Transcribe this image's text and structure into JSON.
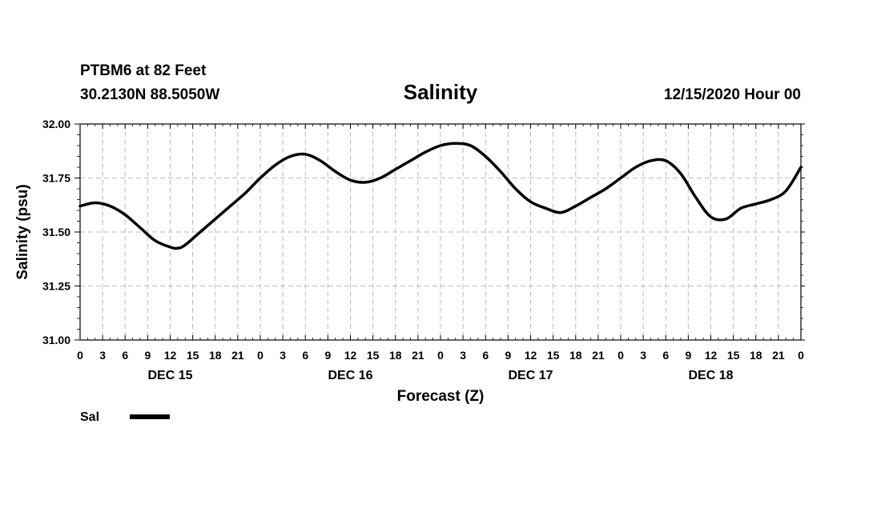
{
  "header": {
    "station_line": "PTBM6 at 82 Feet",
    "coords_line": "30.2130N 88.5050W",
    "date_line": "12/15/2020 Hour 00"
  },
  "legend": {
    "label": "Sal"
  },
  "chart_data": {
    "type": "line",
    "title": "Salinity",
    "xlabel": "Forecast (Z)",
    "ylabel": "Salinity (psu)",
    "ylim": [
      31.0,
      32.0
    ],
    "xlim": [
      0,
      96
    ],
    "yticks": [
      31.0,
      31.25,
      31.5,
      31.75,
      32.0
    ],
    "ytick_labels": [
      "31.00",
      "31.25",
      "31.50",
      "31.75",
      "32.00"
    ],
    "xticks": [
      0,
      3,
      6,
      9,
      12,
      15,
      18,
      21,
      24,
      27,
      30,
      33,
      36,
      39,
      42,
      45,
      48,
      51,
      54,
      57,
      60,
      63,
      66,
      69,
      72,
      75,
      78,
      81,
      84,
      87,
      90,
      93,
      96
    ],
    "xtick_labels": [
      "0",
      "3",
      "6",
      "9",
      "12",
      "15",
      "18",
      "21",
      "0",
      "3",
      "6",
      "9",
      "12",
      "15",
      "18",
      "21",
      "0",
      "3",
      "6",
      "9",
      "12",
      "15",
      "18",
      "21",
      "0",
      "3",
      "6",
      "9",
      "12",
      "15",
      "18",
      "21",
      "0"
    ],
    "day_labels": [
      {
        "label": "DEC 15",
        "hour": 12
      },
      {
        "label": "DEC 16",
        "hour": 36
      },
      {
        "label": "DEC 17",
        "hour": 60
      },
      {
        "label": "DEC 18",
        "hour": 84
      }
    ],
    "grid": true,
    "legend_position": "bottom-left",
    "series": [
      {
        "name": "Sal",
        "color": "#000000",
        "x": [
          0,
          2,
          4,
          6,
          8,
          10,
          12,
          13,
          14,
          16,
          18,
          20,
          22,
          24,
          26,
          28,
          30,
          32,
          34,
          36,
          38,
          40,
          42,
          44,
          46,
          48,
          50,
          52,
          54,
          56,
          58,
          60,
          62,
          64,
          66,
          68,
          70,
          72,
          74,
          76,
          78,
          80,
          82,
          84,
          86,
          88,
          90,
          92,
          94,
          96
        ],
        "values": [
          31.62,
          31.635,
          31.62,
          31.58,
          31.52,
          31.46,
          31.43,
          31.425,
          31.44,
          31.5,
          31.56,
          31.62,
          31.68,
          31.75,
          31.81,
          31.85,
          31.86,
          31.83,
          31.78,
          31.74,
          31.73,
          31.75,
          31.79,
          31.83,
          31.87,
          31.9,
          31.91,
          31.9,
          31.85,
          31.78,
          31.7,
          31.64,
          31.61,
          31.59,
          31.62,
          31.66,
          31.7,
          31.75,
          31.8,
          31.83,
          31.83,
          31.77,
          31.66,
          31.57,
          31.56,
          31.61,
          31.63,
          31.65,
          31.69,
          31.8
        ]
      }
    ]
  }
}
